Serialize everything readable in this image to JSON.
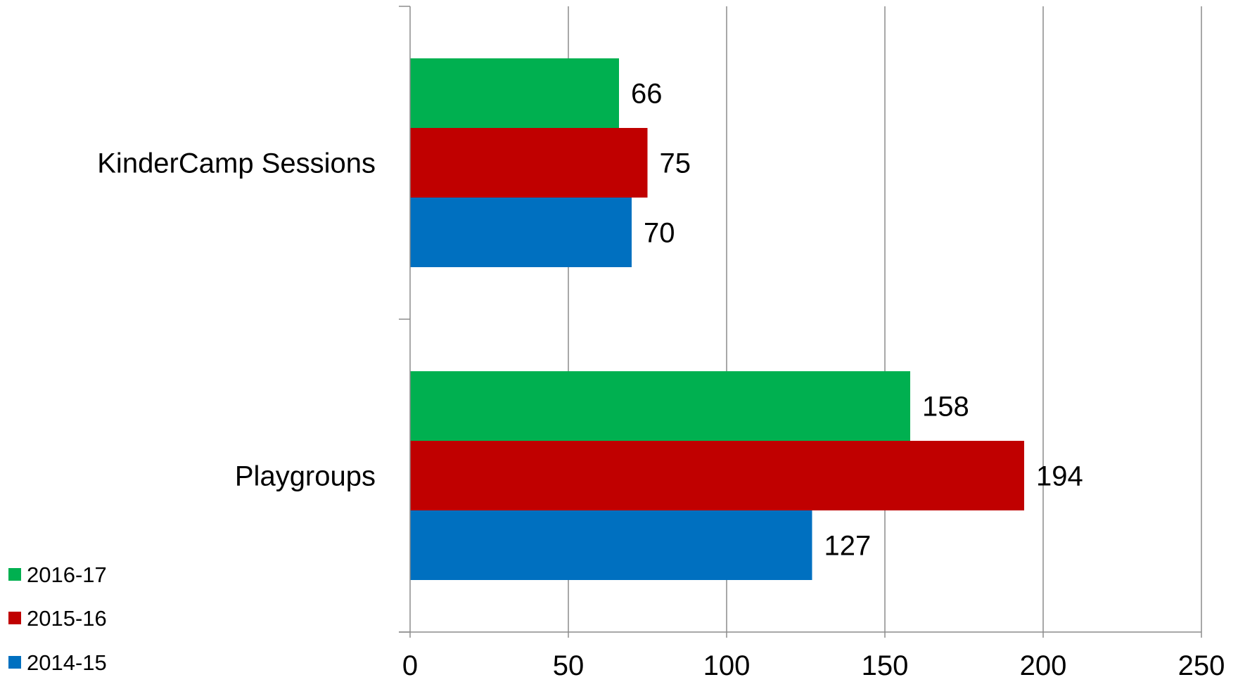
{
  "chart_data": {
    "type": "bar",
    "orientation": "horizontal",
    "categories": [
      "KinderCamp Sessions",
      "Playgroups"
    ],
    "series": [
      {
        "name": "2016-17",
        "color": "#00B050",
        "values": [
          66,
          158
        ]
      },
      {
        "name": "2015-16",
        "color": "#C00000",
        "values": [
          75,
          194
        ]
      },
      {
        "name": "2014-15",
        "color": "#0070C0",
        "values": [
          70,
          127
        ]
      }
    ],
    "xticks": [
      "0",
      "50",
      "100",
      "150",
      "200",
      "250"
    ],
    "xlim": [
      0,
      250
    ],
    "grid": "vertical",
    "legend": "bottom-left",
    "title": "",
    "xlabel": "",
    "ylabel": ""
  }
}
